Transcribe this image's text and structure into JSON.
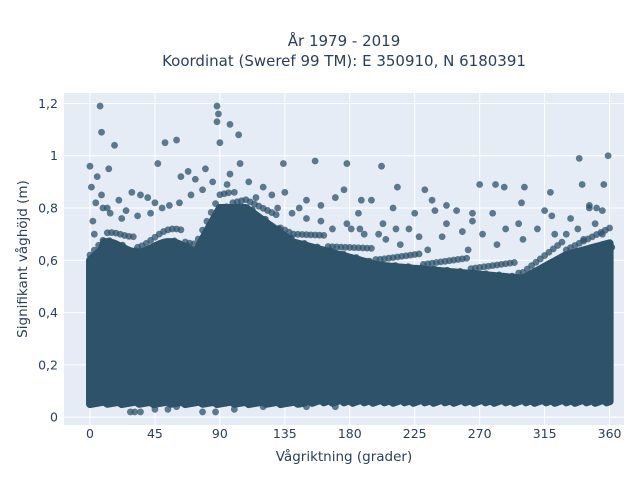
{
  "chart_data": {
    "type": "scatter",
    "title_line1": "År 1979 - 2019",
    "title_line2": "Koordinat (Sweref 99 TM): E 350910, N 6180391",
    "xlabel": "Vågriktning (grader)",
    "ylabel": "Signifikant våghöjd (m)",
    "xlim": [
      -18,
      370
    ],
    "ylim": [
      -0.03,
      1.24
    ],
    "xticks": [
      0,
      45,
      90,
      135,
      180,
      225,
      270,
      315,
      360
    ],
    "xtick_labels": [
      "0",
      "45",
      "90",
      "135",
      "180",
      "225",
      "270",
      "315",
      "360"
    ],
    "yticks": [
      0,
      0.2,
      0.4,
      0.6,
      0.8,
      1.0,
      1.2
    ],
    "ytick_labels": [
      "0",
      "0,2",
      "0,4",
      "0,6",
      "0,8",
      "1",
      "1,2"
    ],
    "grid": true,
    "colors": {
      "background": "#e5ecf6",
      "marker": "#2e5269",
      "text": "#2a3f5f"
    },
    "series": [
      {
        "points": [
          [
            7,
            1.19
          ],
          [
            88,
            1.19
          ],
          [
            89,
            1.16
          ],
          [
            88,
            1.13
          ],
          [
            97,
            1.12
          ],
          [
            8,
            1.09
          ],
          [
            103,
            1.08
          ],
          [
            60,
            1.06
          ],
          [
            90,
            1.05
          ],
          [
            52,
            1.05
          ],
          [
            17,
            1.04
          ],
          [
            359,
            1.0
          ],
          [
            156,
            0.98
          ],
          [
            339,
            0.99
          ],
          [
            178,
            0.97
          ],
          [
            47,
            0.97
          ],
          [
            134,
            0.97
          ],
          [
            202,
            0.96
          ],
          [
            0,
            0.96
          ],
          [
            13,
            0.95
          ],
          [
            5,
            0.92
          ],
          [
            68,
            0.94
          ],
          [
            63,
            0.92
          ],
          [
            176,
            0.87
          ],
          [
            281,
            0.89
          ],
          [
            270,
            0.89
          ],
          [
            287,
            0.88
          ],
          [
            301,
            0.88
          ],
          [
            8,
            0.85
          ],
          [
            29,
            0.86
          ],
          [
            35,
            0.85
          ],
          [
            341,
            0.89
          ],
          [
            356,
            0.89
          ],
          [
            319,
            0.86
          ],
          [
            232,
            0.87
          ],
          [
            213,
            0.88
          ],
          [
            170,
            0.84
          ],
          [
            188,
            0.83
          ],
          [
            237,
            0.83
          ],
          [
            195,
            0.83
          ],
          [
            4,
            0.82
          ],
          [
            346,
            0.81
          ],
          [
            346,
            0.8
          ],
          [
            351,
            0.8
          ],
          [
            355,
            0.79
          ],
          [
            299,
            0.82
          ],
          [
            315,
            0.79
          ],
          [
            247,
            0.81
          ],
          [
            254,
            0.79
          ],
          [
            210,
            0.8
          ],
          [
            239,
            0.79
          ],
          [
            186,
            0.78
          ],
          [
            225,
            0.78
          ],
          [
            265,
            0.78
          ],
          [
            279,
            0.78
          ],
          [
            320,
            0.77
          ],
          [
            333,
            0.76
          ],
          [
            297,
            0.74
          ],
          [
            265,
            0.75
          ],
          [
            247,
            0.74
          ],
          [
            203,
            0.74
          ],
          [
            187,
            0.72
          ],
          [
            178,
            0.74
          ],
          [
            212,
            0.72
          ],
          [
            221,
            0.72
          ],
          [
            145,
            0.8
          ],
          [
            150,
            0.83
          ],
          [
            160,
            0.81
          ],
          [
            120,
            0.88
          ],
          [
            126,
            0.85
          ],
          [
            135,
            0.86
          ],
          [
            110,
            0.9
          ],
          [
            97,
            0.93
          ],
          [
            104,
            0.97
          ],
          [
            80,
            0.95
          ],
          [
            73,
            0.91
          ],
          [
            40,
            0.84
          ],
          [
            45,
            0.82
          ],
          [
            55,
            0.81
          ],
          [
            20,
            0.83
          ],
          [
            25,
            0.79
          ],
          [
            12,
            0.8
          ],
          [
            2,
            0.75
          ],
          [
            1,
            0.88
          ],
          [
            3,
            0.7
          ],
          [
            355,
            0.7
          ],
          [
            360,
            0.66
          ],
          [
            342,
            0.68
          ],
          [
            330,
            0.7
          ],
          [
            310,
            0.72
          ],
          [
            288,
            0.72
          ],
          [
            272,
            0.7
          ],
          [
            258,
            0.71
          ],
          [
            244,
            0.69
          ],
          [
            228,
            0.69
          ],
          [
            200,
            0.7
          ],
          [
            190,
            0.7
          ],
          [
            168,
            0.72
          ],
          [
            160,
            0.75
          ],
          [
            150,
            0.76
          ],
          [
            140,
            0.78
          ],
          [
            130,
            0.8
          ],
          [
            115,
            0.84
          ],
          [
            100,
            0.86
          ],
          [
            95,
            0.89
          ],
          [
            85,
            0.9
          ],
          [
            78,
            0.87
          ],
          [
            70,
            0.85
          ],
          [
            62,
            0.82
          ],
          [
            50,
            0.8
          ],
          [
            42,
            0.78
          ],
          [
            33,
            0.77
          ],
          [
            22,
            0.76
          ],
          [
            14,
            0.78
          ],
          [
            9,
            0.8
          ],
          [
            181,
            0.72
          ],
          [
            205,
            0.68
          ],
          [
            215,
            0.66
          ],
          [
            234,
            0.64
          ],
          [
            262,
            0.64
          ],
          [
            282,
            0.66
          ],
          [
            300,
            0.68
          ],
          [
            322,
            0.7
          ],
          [
            338,
            0.72
          ],
          [
            350,
            0.74
          ],
          [
            31,
            0.02
          ],
          [
            35,
            0.02
          ],
          [
            54,
            0.03
          ],
          [
            45,
            0.03
          ],
          [
            78,
            0.02
          ],
          [
            87,
            0.02
          ],
          [
            60,
            0.04
          ],
          [
            120,
            0.04
          ],
          [
            150,
            0.04
          ],
          [
            170,
            0.04
          ],
          [
            28,
            0.02
          ],
          [
            100,
            0.03
          ]
        ]
      }
    ]
  }
}
